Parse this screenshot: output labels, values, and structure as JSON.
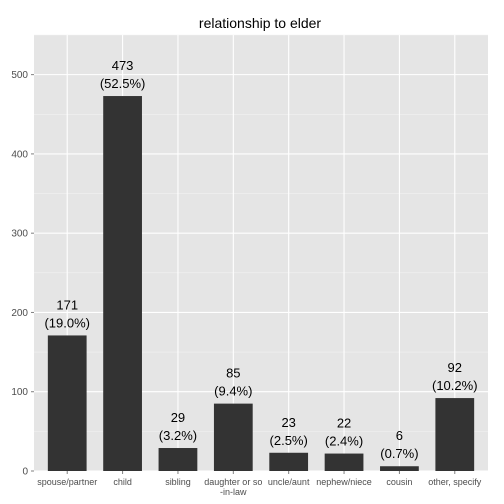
{
  "chart_data": {
    "type": "bar",
    "title": "relationship to elder",
    "xlabel": "",
    "ylabel": "",
    "ylim": [
      0,
      550
    ],
    "yticks": [
      0,
      100,
      200,
      300,
      400,
      500
    ],
    "grid": true,
    "legend": "none",
    "colors": {
      "bar": "#333333",
      "panel": "#e5e5e5",
      "grid": "#ffffff"
    },
    "categories": [
      "spouse/partner",
      "child",
      "sibling",
      "daughter or son-in-law",
      "uncle/aunt",
      "nephew/niece",
      "cousin",
      "other, specify"
    ],
    "category_display": [
      [
        "spouse/partner"
      ],
      [
        "child"
      ],
      [
        "sibling"
      ],
      [
        "daughter or so",
        "-in-law"
      ],
      [
        "uncle/aunt"
      ],
      [
        "nephew/niece"
      ],
      [
        "cousin"
      ],
      [
        "other, specify"
      ]
    ],
    "values": [
      171,
      473,
      29,
      85,
      23,
      22,
      6,
      92
    ],
    "data_labels": [
      [
        "171",
        "(19.0%)"
      ],
      [
        "473",
        "(52.5%)"
      ],
      [
        "29",
        "(3.2%)"
      ],
      [
        "85",
        "(9.4%)"
      ],
      [
        "23",
        "(2.5%)"
      ],
      [
        "22",
        "(2.4%)"
      ],
      [
        "6",
        "(0.7%)"
      ],
      [
        "92",
        "(10.2%)"
      ]
    ]
  }
}
